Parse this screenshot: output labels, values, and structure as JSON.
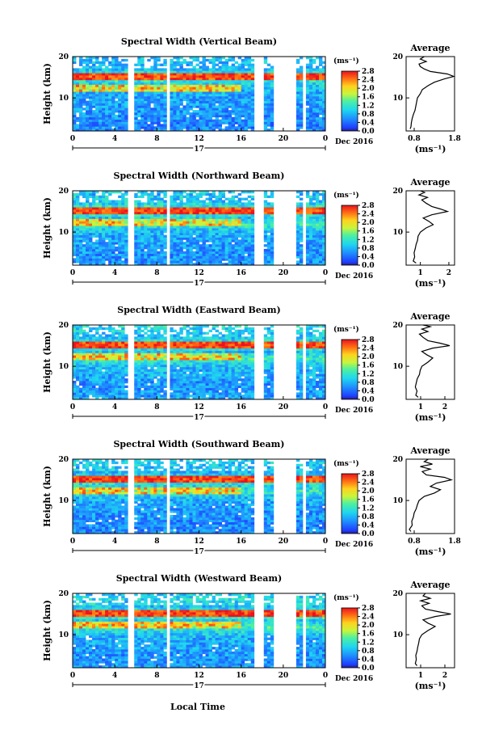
{
  "figure": {
    "shared_xlabel": "Local Time"
  },
  "chart_data": [
    {
      "type": "heatmap",
      "title": "Spectral Width (Vertical Beam)",
      "ylabel": "Height (km)",
      "x_ticks": [
        "0",
        "4",
        "8",
        "12",
        "16",
        "20",
        "0"
      ],
      "y_ticks": [
        "20",
        "10"
      ],
      "xlim": [
        0,
        24
      ],
      "ylim": [
        2,
        20
      ],
      "date_day": "17",
      "date_label": "Dec 2016",
      "colorbar": {
        "unit": "(ms⁻¹)",
        "ticks": [
          "2.8",
          "2.4",
          "2.0",
          "1.6",
          "1.2",
          "0.8",
          "0.4",
          "0.0"
        ],
        "range": [
          0,
          2.8
        ]
      },
      "data_gaps_hours": [
        [
          5.1,
          5.9
        ],
        [
          8.9,
          9.3
        ],
        [
          17.3,
          18.2
        ],
        [
          19.1,
          21.2
        ],
        [
          21.8,
          22.2
        ]
      ],
      "average_profile": {
        "title": "Average",
        "xlabel": "(ms⁻¹)",
        "x_ticks": [
          "0.8",
          "1.8"
        ],
        "xlim": [
          0.6,
          1.8
        ],
        "y_ticks": [
          "20",
          "10"
        ],
        "ylim": [
          2,
          20
        ],
        "height_km": [
          2.5,
          3,
          4,
          5,
          6,
          7,
          8,
          9,
          10,
          11,
          12,
          13,
          13.8,
          14.6,
          15.2,
          15.8,
          16.4,
          17,
          17.6,
          18.2,
          18.8,
          19.4,
          20
        ],
        "values": [
          0.7,
          0.72,
          0.73,
          0.75,
          0.78,
          0.82,
          0.84,
          0.86,
          0.88,
          0.95,
          1.0,
          1.15,
          1.3,
          1.55,
          1.78,
          1.62,
          1.2,
          1.05,
          0.95,
          0.92,
          1.1,
          0.95,
          1.05
        ]
      }
    },
    {
      "type": "heatmap",
      "title": "Spectral Width (Northward Beam)",
      "ylabel": "Height (km)",
      "x_ticks": [
        "0",
        "4",
        "8",
        "12",
        "16",
        "20",
        "0"
      ],
      "y_ticks": [
        "20",
        "10"
      ],
      "xlim": [
        0,
        24
      ],
      "ylim": [
        2,
        20
      ],
      "date_day": "17",
      "date_label": "Dec 2016",
      "colorbar": {
        "unit": "(ms⁻¹)",
        "ticks": [
          "2.8",
          "2.4",
          "2.0",
          "1.6",
          "1.2",
          "0.8",
          "0.4",
          "0.0"
        ],
        "range": [
          0,
          2.8
        ]
      },
      "data_gaps_hours": [
        [
          5.1,
          5.9
        ],
        [
          8.9,
          9.3
        ],
        [
          17.3,
          18.2
        ],
        [
          19.1,
          21.2
        ],
        [
          21.8,
          22.2
        ]
      ],
      "average_profile": {
        "title": "Average",
        "xlabel": "(ms⁻¹)",
        "x_ticks": [
          "1",
          "2"
        ],
        "xlim": [
          0.5,
          2.2
        ],
        "y_ticks": [
          "20",
          "10"
        ],
        "ylim": [
          2,
          20
        ],
        "height_km": [
          2.5,
          3,
          4,
          5,
          6,
          7,
          8,
          9,
          10,
          11,
          11.8,
          12.6,
          13.4,
          14.2,
          15,
          15.6,
          16.2,
          17,
          17.8,
          18.4,
          19,
          19.6,
          20
        ],
        "values": [
          0.85,
          0.75,
          0.8,
          0.78,
          0.82,
          0.85,
          0.9,
          0.92,
          1.0,
          1.2,
          1.45,
          1.3,
          1.1,
          1.4,
          1.95,
          1.7,
          1.4,
          1.2,
          1.05,
          1.25,
          0.95,
          1.15,
          1.0
        ]
      }
    },
    {
      "type": "heatmap",
      "title": "Spectral Width (Eastward Beam)",
      "ylabel": "Height (km)",
      "x_ticks": [
        "0",
        "4",
        "8",
        "12",
        "16",
        "20",
        "0"
      ],
      "y_ticks": [
        "20",
        "10"
      ],
      "xlim": [
        0,
        24
      ],
      "ylim": [
        2,
        20
      ],
      "date_day": "17",
      "date_label": "Dec 2016",
      "colorbar": {
        "unit": "(ms⁻¹)",
        "ticks": [
          "2.8",
          "2.4",
          "2.0",
          "1.6",
          "1.2",
          "0.8",
          "0.4",
          "0.0"
        ],
        "range": [
          0,
          2.8
        ]
      },
      "data_gaps_hours": [
        [
          5.1,
          5.9
        ],
        [
          8.9,
          9.3
        ],
        [
          17.3,
          18.2
        ],
        [
          19.1,
          21.2
        ],
        [
          21.8,
          22.2
        ]
      ],
      "average_profile": {
        "title": "Average",
        "xlabel": "(ms⁻¹)",
        "x_ticks": [
          "1",
          "2"
        ],
        "xlim": [
          0.4,
          2.4
        ],
        "y_ticks": [
          "20",
          "10"
        ],
        "ylim": [
          2,
          20
        ],
        "height_km": [
          2.5,
          3,
          4,
          5,
          6,
          7,
          8,
          9,
          10,
          11,
          12,
          12.8,
          13.6,
          14.4,
          15,
          15.6,
          16.2,
          17,
          17.8,
          18.4,
          19,
          19.6,
          20
        ],
        "values": [
          0.9,
          0.8,
          0.85,
          0.78,
          0.82,
          0.86,
          0.95,
          0.98,
          1.05,
          1.3,
          1.5,
          1.25,
          1.05,
          1.5,
          2.2,
          1.8,
          1.3,
          1.1,
          0.95,
          1.3,
          1.05,
          1.4,
          1.1
        ]
      }
    },
    {
      "type": "heatmap",
      "title": "Spectral Width (Southward Beam)",
      "ylabel": "Height (km)",
      "x_ticks": [
        "0",
        "4",
        "8",
        "12",
        "16",
        "20",
        "0"
      ],
      "y_ticks": [
        "20",
        "10"
      ],
      "xlim": [
        0,
        24
      ],
      "ylim": [
        2,
        20
      ],
      "date_day": "17",
      "date_label": "Dec 2016",
      "colorbar": {
        "unit": "(ms⁻¹)",
        "ticks": [
          "2.8",
          "2.4",
          "2.0",
          "1.6",
          "1.2",
          "0.8",
          "0.4",
          "0.0"
        ],
        "range": [
          0,
          2.8
        ]
      },
      "data_gaps_hours": [
        [
          5.1,
          5.9
        ],
        [
          8.9,
          9.3
        ],
        [
          17.3,
          18.2
        ],
        [
          19.1,
          21.2
        ],
        [
          21.8,
          22.2
        ]
      ],
      "average_profile": {
        "title": "Average",
        "xlabel": "(ms⁻¹)",
        "x_ticks": [
          "0.8",
          "1.8"
        ],
        "xlim": [
          0.6,
          1.8
        ],
        "y_ticks": [
          "20",
          "10"
        ],
        "ylim": [
          2,
          20
        ],
        "height_km": [
          2.5,
          3,
          4,
          5,
          6,
          7,
          8,
          9,
          10,
          11,
          11.8,
          12.6,
          13.4,
          14.2,
          15,
          15.6,
          16.2,
          17,
          17.6,
          18.2,
          18.8,
          19.4,
          20
        ],
        "values": [
          0.72,
          0.68,
          0.75,
          0.74,
          0.78,
          0.8,
          0.85,
          0.88,
          0.92,
          1.05,
          1.3,
          1.45,
          1.2,
          1.35,
          1.72,
          1.55,
          1.1,
          1.0,
          1.2,
          0.95,
          1.25,
          1.05,
          1.15
        ]
      }
    },
    {
      "type": "heatmap",
      "title": "Spectral Width (Westward Beam)",
      "ylabel": "Height (km)",
      "x_ticks": [
        "0",
        "4",
        "8",
        "12",
        "16",
        "20",
        "0"
      ],
      "y_ticks": [
        "20",
        "10"
      ],
      "xlim": [
        0,
        24
      ],
      "ylim": [
        2,
        20
      ],
      "date_day": "17",
      "date_label": "Dec 2016",
      "xlabel": "Local Time",
      "colorbar": {
        "unit": "(ms⁻¹)",
        "ticks": [
          "2.8",
          "2.4",
          "2.0",
          "1.6",
          "1.2",
          "0.8",
          "0.4",
          "0.0"
        ],
        "range": [
          0,
          2.8
        ]
      },
      "data_gaps_hours": [
        [
          5.1,
          5.9
        ],
        [
          8.9,
          9.3
        ],
        [
          17.3,
          18.2
        ],
        [
          19.1,
          21.2
        ],
        [
          21.8,
          22.2
        ]
      ],
      "average_profile": {
        "title": "Average",
        "xlabel": "(ms⁻¹)",
        "x_ticks": [
          "1",
          "2"
        ],
        "xlim": [
          0.4,
          2.4
        ],
        "y_ticks": [
          "20",
          "10"
        ],
        "ylim": [
          2,
          20
        ],
        "height_km": [
          2.5,
          3,
          4,
          5,
          6,
          7,
          8,
          9,
          10,
          11,
          12,
          12.8,
          13.6,
          14.4,
          15,
          15.6,
          16.2,
          17,
          17.6,
          18.2,
          18.8,
          19.4,
          20
        ],
        "values": [
          0.85,
          0.78,
          0.82,
          0.8,
          0.85,
          0.88,
          0.92,
          0.95,
          1.05,
          1.3,
          1.6,
          1.3,
          1.1,
          1.6,
          2.25,
          1.7,
          1.2,
          1.05,
          1.35,
          1.0,
          1.4,
          1.1,
          1.2
        ]
      }
    }
  ]
}
